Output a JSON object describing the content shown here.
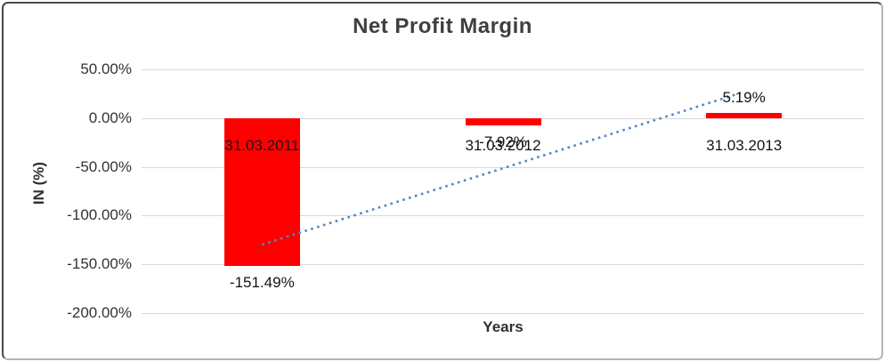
{
  "chart_data": {
    "type": "bar",
    "title": "Net Profit Margin",
    "xlabel": "Years",
    "ylabel": "IN (%)",
    "categories": [
      "31.03.2011",
      "31.03.2012",
      "31.03.2013"
    ],
    "values": [
      -151.49,
      -7.92,
      5.19
    ],
    "data_labels": [
      "-151.49%",
      "-7.92%",
      "5.19%"
    ],
    "ylim": [
      -200,
      50
    ],
    "yticks": [
      {
        "label": "50.00%",
        "value": 50
      },
      {
        "label": "0.00%",
        "value": 0
      },
      {
        "label": "-50.00%",
        "value": -50
      },
      {
        "label": "-100.00%",
        "value": -100
      },
      {
        "label": "-150.00%",
        "value": -150
      },
      {
        "label": "-200.00%",
        "value": -200
      }
    ],
    "grid": true,
    "legend": "none",
    "bar_color": "#ff0000",
    "trendline": {
      "type": "linear",
      "style": "dotted",
      "color": "#4f87c5",
      "start_value": -129.75,
      "end_value": 26.93
    }
  }
}
